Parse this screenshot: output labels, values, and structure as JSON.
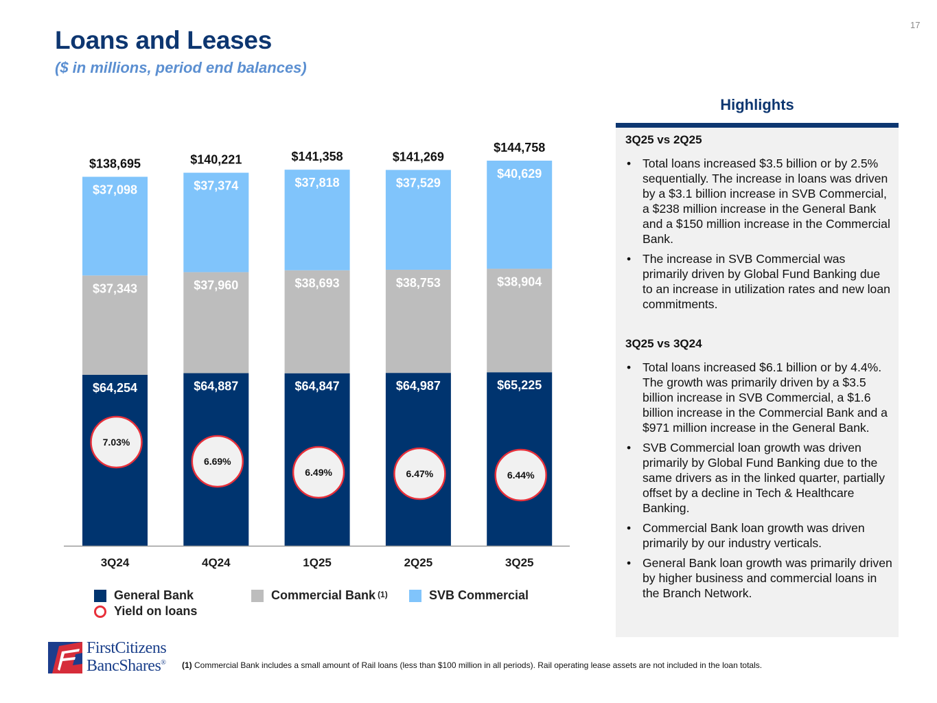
{
  "header": {
    "title": "Loans and Leases",
    "subtitle": "($ in millions, period end balances)",
    "page_number": "17"
  },
  "colors": {
    "general_bank": "#00346f",
    "commercial_bank": "#bdbdbd",
    "svb_commercial": "#80c4fb",
    "yield_ring": "#e8303a",
    "title_navy": "#0d3670",
    "subtitle_blue": "#5b8fd1"
  },
  "chart_data": {
    "type": "bar",
    "stacked": true,
    "title": "Loans and Leases",
    "subtitle": "($ in millions, period end balances)",
    "categories": [
      "3Q24",
      "4Q24",
      "1Q25",
      "2Q25",
      "3Q25"
    ],
    "series": [
      {
        "name": "General Bank",
        "values": [
          64254,
          64887,
          64847,
          64987,
          65225
        ],
        "labels": [
          "$64,254",
          "$64,887",
          "$64,847",
          "$64,987",
          "$65,225"
        ]
      },
      {
        "name": "Commercial Bank",
        "footnote_marker": "(1)",
        "values": [
          37343,
          37960,
          38693,
          38753,
          38904
        ],
        "labels": [
          "$37,343",
          "$37,960",
          "$38,693",
          "$38,753",
          "$38,904"
        ]
      },
      {
        "name": "SVB Commercial",
        "values": [
          37098,
          37374,
          37818,
          37529,
          40629
        ],
        "labels": [
          "$37,098",
          "$37,374",
          "$37,818",
          "$37,529",
          "$40,629"
        ]
      }
    ],
    "totals": [
      138695,
      140221,
      141358,
      141269,
      144758
    ],
    "total_labels": [
      "$138,695",
      "$140,221",
      "$141,358",
      "$141,269",
      "$144,758"
    ],
    "overlay": {
      "name": "Yield on loans",
      "type": "marker",
      "values": [
        7.03,
        6.69,
        6.49,
        6.47,
        6.44
      ],
      "labels": [
        "7.03%",
        "6.69%",
        "6.49%",
        "6.47%",
        "6.44%"
      ]
    },
    "xlabel": "",
    "ylabel": "",
    "ylim": [
      0,
      145000
    ],
    "grid": false,
    "legend": {
      "position": "bottom",
      "items": [
        "General Bank",
        "Commercial Bank",
        "SVB Commercial",
        "Yield on loans"
      ]
    }
  },
  "legend": {
    "general_bank": "General Bank",
    "commercial_bank": "Commercial Bank",
    "commercial_bank_marker": "(1)",
    "svb_commercial": "SVB Commercial",
    "yield": "Yield on loans"
  },
  "highlights": {
    "title": "Highlights",
    "sections": [
      {
        "heading": "3Q25 vs 2Q25",
        "bullets": [
          "Total loans increased $3.5 billion or by 2.5% sequentially. The increase in loans was driven by a $3.1 billion increase in SVB Commercial,  a $238 million increase in the General Bank and a $150 million increase in the Commercial Bank.",
          "The increase in SVB Commercial was primarily driven by Global Fund Banking due to an increase in utilization rates and new loan commitments."
        ]
      },
      {
        "heading": "3Q25 vs 3Q24",
        "bullets": [
          "Total loans increased $6.1 billion or by 4.4%. The growth was primarily driven by a $3.5 billion increase in SVB Commercial, a $1.6 billion increase in the Commercial Bank and a $971 million increase in the General Bank.",
          "SVB Commercial loan growth was driven primarily by Global Fund Banking due to the same drivers as in the linked quarter, partially offset by a decline in Tech & Healthcare Banking.",
          "Commercial Bank loan growth was driven primarily by our industry verticals.",
          "General Bank loan growth was primarily driven by higher business and commercial loans in the Branch Network."
        ]
      }
    ]
  },
  "footer": {
    "logo_line1": "FirstCitizens",
    "logo_line2": "BancShares",
    "logo_mark": "®",
    "footnote_marker": "(1)",
    "footnote_text": " Commercial Bank includes a small amount of Rail loans (less than $100 million in all periods).  Rail operating lease assets are not included in the loan totals."
  }
}
